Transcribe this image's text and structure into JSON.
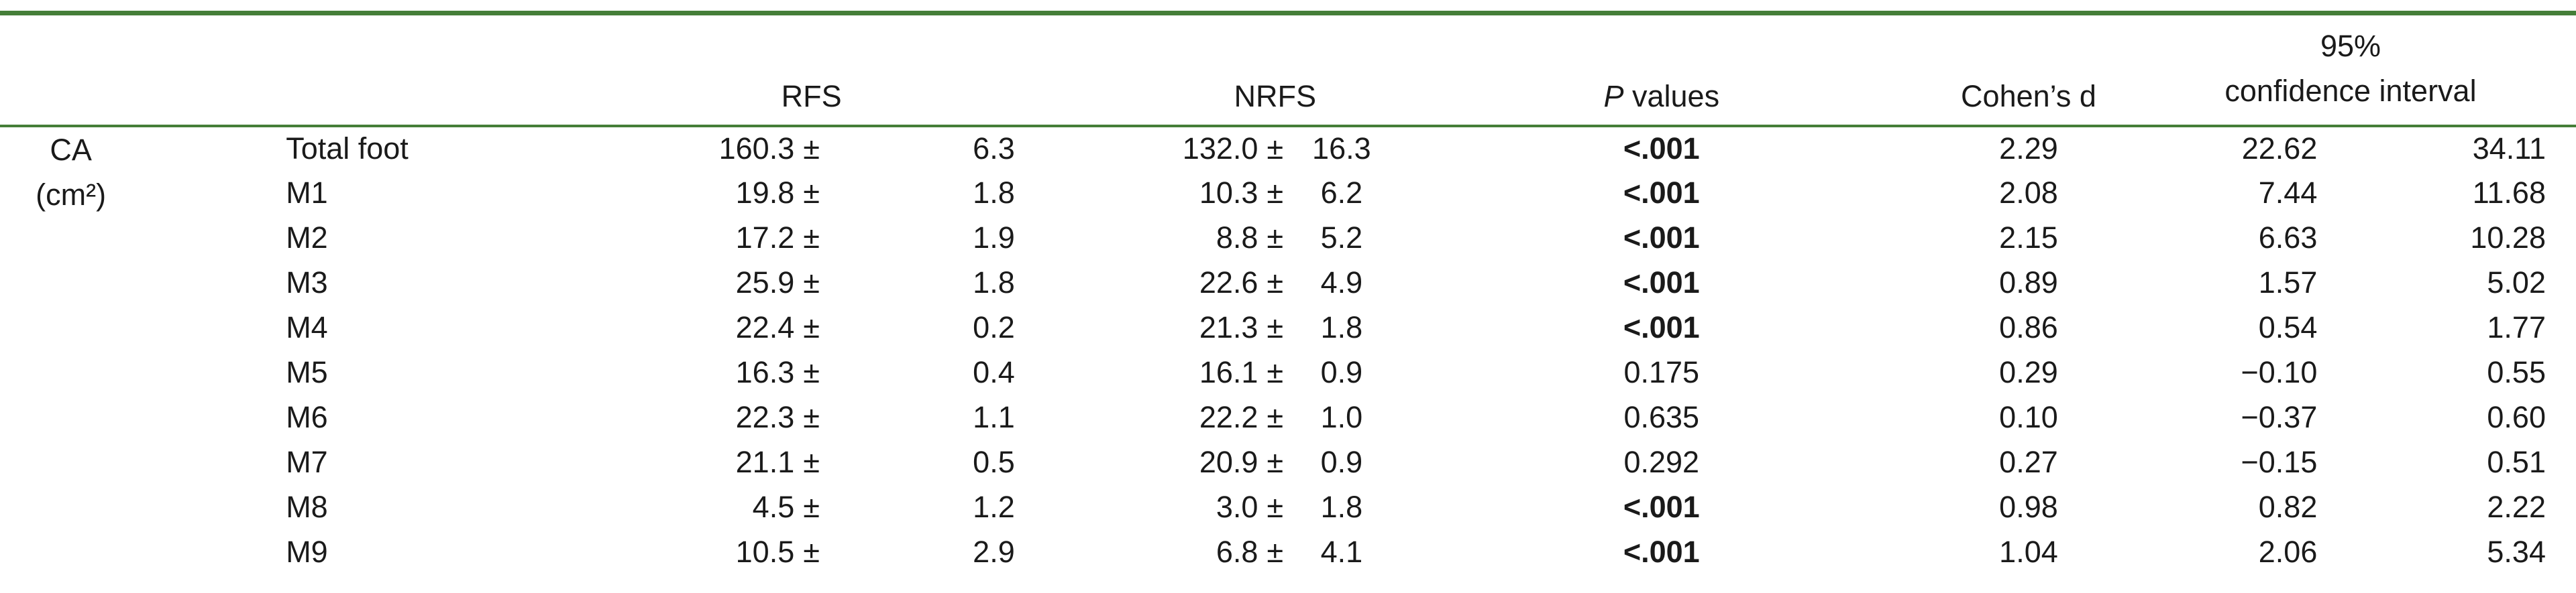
{
  "colors": {
    "rule_green": "#457e38",
    "text": "#1a1a1a",
    "background": "#ffffff"
  },
  "table": {
    "headers": {
      "rfs": "RFS",
      "nrfs": "NRFS",
      "p_italic": "P",
      "p_rest": " values",
      "cohens_d": "Cohen’s d",
      "ci_line1": "95%",
      "ci_line2": "confidence interval"
    },
    "group": {
      "name": "CA",
      "unit": "(cm²)"
    },
    "rows": [
      {
        "label": "Total foot",
        "rfs": "160.3 ± 6.3",
        "nrfs": "132.0 ± 16.3",
        "p": "<.001",
        "p_bold": true,
        "cohen": "2.29",
        "ci_low": "22.62",
        "ci_high": "34.11"
      },
      {
        "label": "M1",
        "rfs": "19.8 ± 1.8",
        "nrfs": "10.3 ± 6.2",
        "p": "<.001",
        "p_bold": true,
        "cohen": "2.08",
        "ci_low": "7.44",
        "ci_high": "11.68"
      },
      {
        "label": "M2",
        "rfs": "17.2 ± 1.9",
        "nrfs": "8.8 ± 5.2",
        "p": "<.001",
        "p_bold": true,
        "cohen": "2.15",
        "ci_low": "6.63",
        "ci_high": "10.28"
      },
      {
        "label": "M3",
        "rfs": "25.9 ± 1.8",
        "nrfs": "22.6 ± 4.9",
        "p": "<.001",
        "p_bold": true,
        "cohen": "0.89",
        "ci_low": "1.57",
        "ci_high": "5.02"
      },
      {
        "label": "M4",
        "rfs": "22.4 ± 0.2",
        "nrfs": "21.3 ± 1.8",
        "p": "<.001",
        "p_bold": true,
        "cohen": "0.86",
        "ci_low": "0.54",
        "ci_high": "1.77"
      },
      {
        "label": "M5",
        "rfs": "16.3 ± 0.4",
        "nrfs": "16.1 ± 0.9",
        "p": "0.175",
        "p_bold": false,
        "cohen": "0.29",
        "ci_low": "−0.10",
        "ci_high": "0.55"
      },
      {
        "label": "M6",
        "rfs": "22.3 ± 1.1",
        "nrfs": "22.2 ± 1.0",
        "p": "0.635",
        "p_bold": false,
        "cohen": "0.10",
        "ci_low": "−0.37",
        "ci_high": "0.60"
      },
      {
        "label": "M7",
        "rfs": "21.1 ± 0.5",
        "nrfs": "20.9 ± 0.9",
        "p": "0.292",
        "p_bold": false,
        "cohen": "0.27",
        "ci_low": "−0.15",
        "ci_high": "0.51"
      },
      {
        "label": "M8",
        "rfs": "4.5 ± 1.2",
        "nrfs": "3.0 ± 1.8",
        "p": "<.001",
        "p_bold": true,
        "cohen": "0.98",
        "ci_low": "0.82",
        "ci_high": "2.22"
      },
      {
        "label": "M9",
        "rfs": "10.5 ± 2.9",
        "nrfs": "6.8 ± 4.1",
        "p": "<.001",
        "p_bold": true,
        "cohen": "1.04",
        "ci_low": "2.06",
        "ci_high": "5.34"
      }
    ]
  }
}
